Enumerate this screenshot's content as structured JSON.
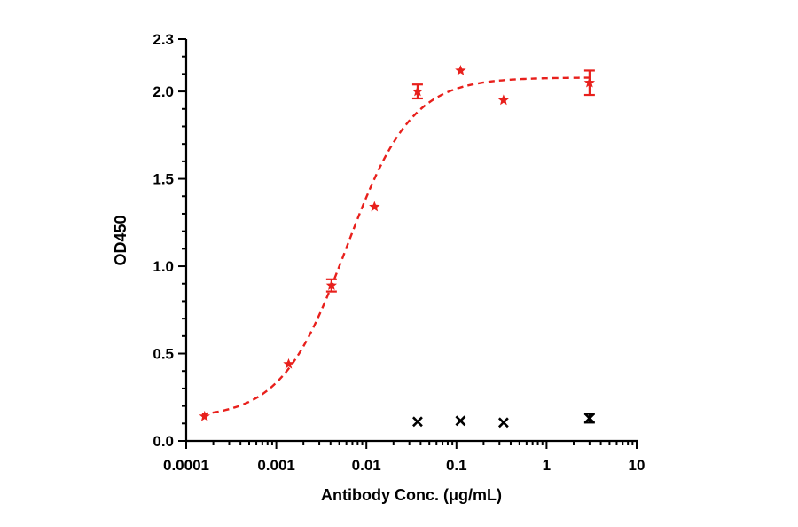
{
  "chart_data": {
    "type": "scatter",
    "xlabel": "Antibody Conc. (μg/mL)",
    "ylabel": "OD450",
    "x_scale": "log",
    "xlim": [
      0.0001,
      10
    ],
    "ylim": [
      0,
      2.3
    ],
    "x_ticks": [
      0.0001,
      0.001,
      0.01,
      0.1,
      1,
      10
    ],
    "x_tick_labels": [
      "0.0001",
      "0.001",
      "0.01",
      "0.1",
      "1",
      "10"
    ],
    "y_ticks": [
      0,
      0.5,
      1.0,
      1.5,
      2.0,
      2.3
    ],
    "y_tick_labels": [
      "0.0",
      "0.5",
      "1.0",
      "1.5",
      "2.0",
      "2.3"
    ],
    "grid": false,
    "legend": "none",
    "series": [
      {
        "color": "#e8201c",
        "marker": "star",
        "fit": "4PL dashed",
        "fit_params": {
          "bottom": 0.13,
          "top": 2.08,
          "ec50": 0.006,
          "hill": 1.2
        },
        "points": [
          {
            "x": 0.00016,
            "y": 0.14,
            "err": 0
          },
          {
            "x": 0.00137,
            "y": 0.44,
            "err": 0
          },
          {
            "x": 0.0041,
            "y": 0.89,
            "err": 0.035
          },
          {
            "x": 0.0123,
            "y": 1.34,
            "err": 0
          },
          {
            "x": 0.037,
            "y": 2.0,
            "err": 0.04
          },
          {
            "x": 0.111,
            "y": 2.12,
            "err": 0
          },
          {
            "x": 0.333,
            "y": 1.95,
            "err": 0
          },
          {
            "x": 3.0,
            "y": 2.05,
            "err": 0.07
          }
        ]
      },
      {
        "color": "#000000",
        "marker": "x",
        "points": [
          {
            "x": 0.037,
            "y": 0.11,
            "err": 0
          },
          {
            "x": 0.111,
            "y": 0.115,
            "err": 0
          },
          {
            "x": 0.333,
            "y": 0.105,
            "err": 0
          },
          {
            "x": 3.0,
            "y": 0.13,
            "err": 0.025
          }
        ]
      }
    ]
  }
}
